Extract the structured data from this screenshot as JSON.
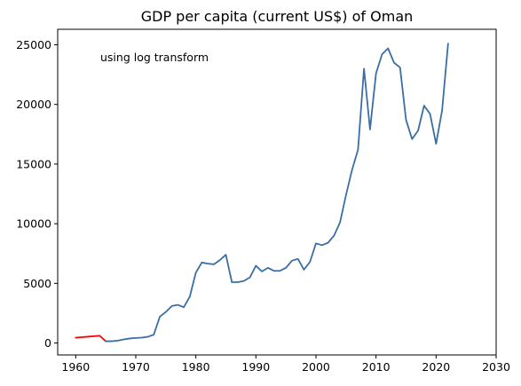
{
  "chart_data": {
    "type": "line",
    "title": "GDP per capita (current US$) of Oman",
    "annotation": "using log transform",
    "xlabel": "",
    "ylabel": "",
    "xlim": [
      1957,
      2030
    ],
    "ylim": [
      -1000,
      26300
    ],
    "xticks": [
      1960,
      1970,
      1980,
      1990,
      2000,
      2010,
      2020,
      2030
    ],
    "yticks": [
      0,
      5000,
      10000,
      15000,
      20000,
      25000
    ],
    "grid": false,
    "legend": "none",
    "series": [
      {
        "color": "#ff0000",
        "style": "imputed",
        "x": [
          1960,
          1961,
          1962,
          1963,
          1964,
          1965
        ],
        "y": [
          450,
          490,
          530,
          570,
          610,
          150
        ]
      },
      {
        "color": "#3a6ea5",
        "style": "observed",
        "x": [
          1965,
          1966,
          1967,
          1968,
          1969,
          1970,
          1971,
          1972,
          1973,
          1974,
          1975,
          1976,
          1977,
          1978,
          1979,
          1980,
          1981,
          1982,
          1983,
          1984,
          1985,
          1986,
          1987,
          1988,
          1989,
          1990,
          1991,
          1992,
          1993,
          1994,
          1995,
          1996,
          1997,
          1998,
          1999,
          2000,
          2001,
          2002,
          2003,
          2004,
          2005,
          2006,
          2007,
          2008,
          2009,
          2010,
          2011,
          2012,
          2013,
          2014,
          2015,
          2016,
          2017,
          2018,
          2019,
          2020,
          2021,
          2022
        ],
        "y": [
          150,
          150,
          200,
          300,
          380,
          420,
          450,
          520,
          700,
          2200,
          2600,
          3100,
          3200,
          3000,
          3900,
          5900,
          6750,
          6650,
          6600,
          6950,
          7400,
          5100,
          5100,
          5200,
          5500,
          6480,
          6000,
          6300,
          6050,
          6050,
          6300,
          6900,
          7050,
          6150,
          6800,
          8350,
          8200,
          8400,
          9000,
          10100,
          12400,
          14500,
          16200,
          23000,
          17900,
          22600,
          24200,
          24700,
          23500,
          23100,
          18700,
          17100,
          17800,
          19900,
          19200,
          16700,
          19500,
          25100
        ]
      }
    ]
  }
}
